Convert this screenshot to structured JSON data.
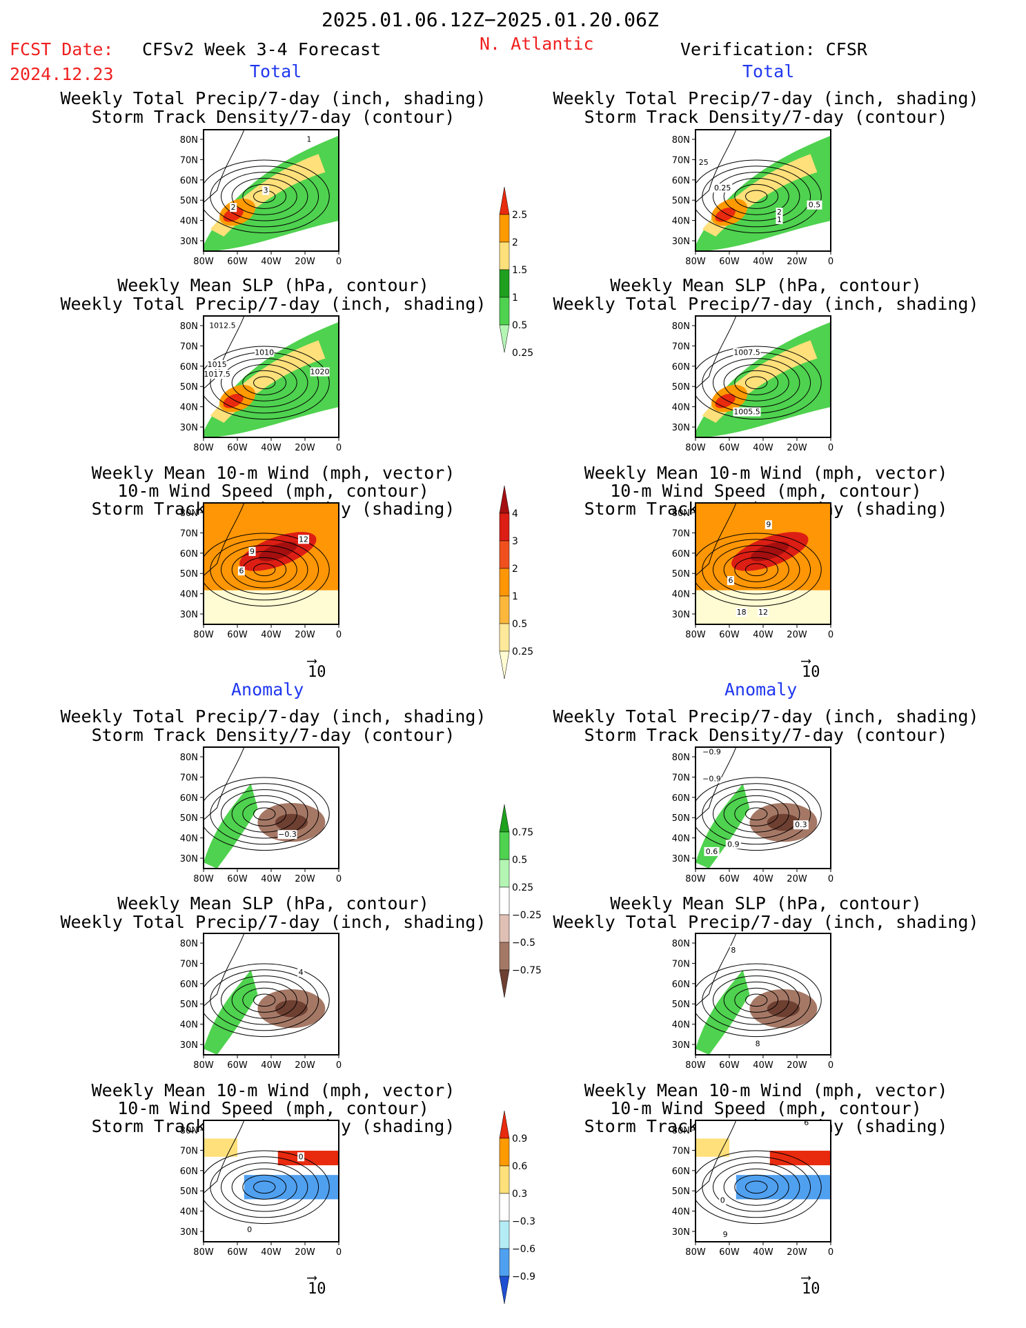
{
  "header": {
    "date_range": "2025.01.06.12Z−2025.01.20.06Z",
    "fcst_label": "FCST Date:",
    "fcst_date": "2024.12.23",
    "model": "CFSv2 Week 3-4 Forecast",
    "region": "N. Atlantic",
    "verification": "Verification: CFSR"
  },
  "sections": {
    "total": "Total",
    "anomaly": "Anomaly"
  },
  "panel_titles": {
    "precip_storm": [
      "Weekly Total Precip/7-day (inch, shading)",
      "Storm Track Density/7-day (contour)"
    ],
    "slp_precip": [
      "Weekly Mean SLP (hPa, contour)",
      "Weekly Total Precip/7-day (inch, shading)"
    ],
    "wind_storm": [
      "Weekly Mean 10-m Wind (mph, vector)",
      "10-m Wind Speed (mph, contour)",
      "Storm Track Density/7-day (shading)"
    ]
  },
  "axes": {
    "lat_labels": [
      "80N",
      "70N",
      "60N",
      "50N",
      "40N",
      "30N"
    ],
    "lon_labels": [
      "80W",
      "60W",
      "40W",
      "20W",
      "0"
    ]
  },
  "vector_ref": "10",
  "colorbars": {
    "precip_total": {
      "labels": [
        "2.5",
        "2",
        "1.5",
        "1",
        "0.5",
        "0.25"
      ],
      "colors": [
        "#e82a0e",
        "#ff9a00",
        "#ffe07a",
        "#1fa01f",
        "#4fd24f",
        "#b4f5b4"
      ]
    },
    "storm_total": {
      "labels": [
        "4",
        "3",
        "2",
        "1",
        "0.5",
        "0.25"
      ],
      "colors": [
        "#a50f0f",
        "#dc1e14",
        "#f0501e",
        "#ff9605",
        "#fdb83c",
        "#fee99a",
        "#fffbd2"
      ]
    },
    "precip_anom": {
      "labels": [
        "0.75",
        "0.5",
        "0.25",
        "−0.25",
        "−0.5",
        "−0.75"
      ],
      "colors": [
        "#1fa01f",
        "#4fd24f",
        "#b4f5b4",
        "#ffffff",
        "#e0c0b4",
        "#a57866",
        "#6e4032"
      ]
    },
    "storm_anom": {
      "labels": [
        "0.9",
        "0.6",
        "0.3",
        "−0.3",
        "−0.6",
        "−0.9"
      ],
      "colors": [
        "#e82a0e",
        "#ff9a00",
        "#ffe07a",
        "#ffffff",
        "#b4ecf5",
        "#50a0f0",
        "#1e50d2"
      ]
    }
  },
  "panels": [
    {
      "id": "fc-precip-total",
      "labels": [
        "1",
        "3",
        "2"
      ]
    },
    {
      "id": "an-precip-total",
      "labels": [
        "25",
        "0.25",
        "2",
        "1",
        "0.5"
      ]
    },
    {
      "id": "fc-slp-total",
      "labels": [
        "1012.5",
        "1010",
        "1015",
        "1017.5",
        "1020"
      ]
    },
    {
      "id": "an-slp-total",
      "labels": [
        "1007.5",
        "1005.5"
      ]
    },
    {
      "id": "fc-wind-total",
      "labels": [
        "9",
        "12",
        "6"
      ]
    },
    {
      "id": "an-wind-total",
      "labels": [
        "9",
        "6",
        "18",
        "12"
      ]
    },
    {
      "id": "fc-precip-anom",
      "labels": [
        "−0.3"
      ]
    },
    {
      "id": "an-precip-anom",
      "labels": [
        "−0.9",
        "−0.9",
        "0.3",
        "0.9",
        "0.6"
      ]
    },
    {
      "id": "fc-slp-anom",
      "labels": [
        "4"
      ]
    },
    {
      "id": "an-slp-anom",
      "labels": [
        "8",
        "8"
      ]
    },
    {
      "id": "fc-wind-anom",
      "labels": [
        "0",
        "0"
      ]
    },
    {
      "id": "an-wind-anom",
      "labels": [
        "6",
        "0",
        "9"
      ]
    }
  ]
}
